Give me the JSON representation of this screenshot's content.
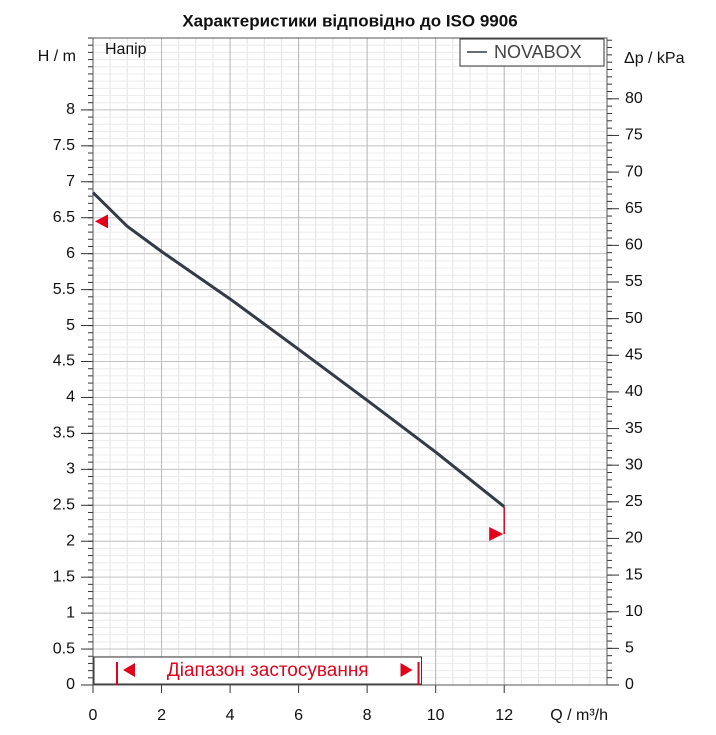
{
  "chart_data": {
    "type": "line",
    "title": "Характеристики відповідно до ISO 9906",
    "subtitle": "Напір",
    "x_label": "Q / m³/h",
    "y_label": "H / m",
    "y2_label": "Δp / kPa",
    "x": [
      0,
      1,
      2,
      4,
      6,
      8,
      10,
      12
    ],
    "series": [
      {
        "name": "NOVABOX",
        "color": "#343b46",
        "values": [
          6.85,
          6.38,
          6.03,
          5.37,
          4.67,
          3.96,
          3.24,
          2.48
        ]
      }
    ],
    "xlim": [
      0,
      15
    ],
    "xticks": [
      0,
      2,
      4,
      6,
      8,
      10,
      12
    ],
    "ylim": [
      0,
      9
    ],
    "yticks": [
      0,
      0.5,
      1,
      1.5,
      2,
      2.5,
      3,
      3.5,
      4,
      4.5,
      5,
      5.5,
      6,
      6.5,
      7,
      7.5,
      8
    ],
    "y2lim": [
      0,
      88.3
    ],
    "y2ticks": [
      0,
      5,
      10,
      15,
      20,
      25,
      30,
      35,
      40,
      45,
      50,
      55,
      60,
      65,
      70,
      75,
      80
    ],
    "grid": true,
    "legend": "top-right",
    "application_range": {
      "label": "Діапазон застосування",
      "from": 0.7,
      "to": 9.5,
      "color": "#e3001b"
    },
    "limit_markers": [
      {
        "x": 0,
        "y": 6.45
      },
      {
        "x": 12,
        "y": 2.1
      }
    ]
  }
}
